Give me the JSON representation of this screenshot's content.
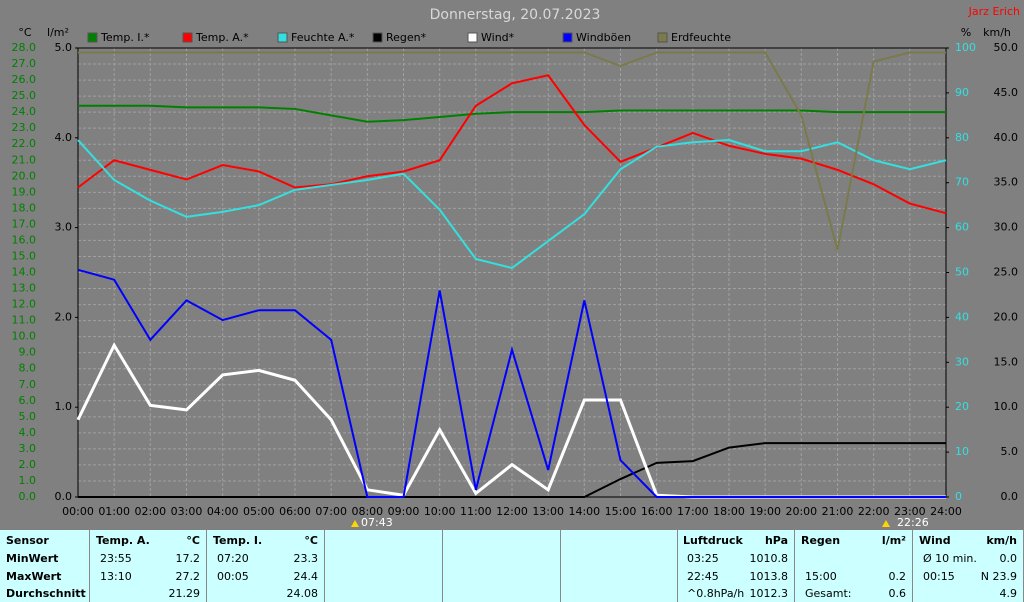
{
  "chart_data": {
    "type": "line",
    "title": "Donnerstag, 20.07.2023",
    "author": "Jarz Erich",
    "y_label": "°C",
    "y2_label": "l/m²",
    "y3_label": "%",
    "y4_label": "km/h",
    "x": [
      0,
      1,
      2,
      3,
      4,
      5,
      6,
      7,
      8,
      9,
      10,
      11,
      12,
      13,
      14,
      15,
      16,
      17,
      18,
      19,
      20,
      21,
      22,
      23,
      24
    ],
    "xlim": [
      0,
      24
    ],
    "xticks": [
      {
        "value": 0,
        "label": "00:00"
      },
      {
        "value": 1,
        "label": "01:00"
      },
      {
        "value": 2,
        "label": "02:00"
      },
      {
        "value": 3,
        "label": "03:00"
      },
      {
        "value": 4,
        "label": "04:00"
      },
      {
        "value": 5,
        "label": "05:00"
      },
      {
        "value": 6,
        "label": "06:00"
      },
      {
        "value": 7,
        "label": "07:00"
      },
      {
        "value": 8,
        "label": "08:00"
      },
      {
        "value": 9,
        "label": "09:00"
      },
      {
        "value": 10,
        "label": "10:00"
      },
      {
        "value": 11,
        "label": "11:00"
      },
      {
        "value": 12,
        "label": "12:00"
      },
      {
        "value": 13,
        "label": "13:00"
      },
      {
        "value": 14,
        "label": "14:00"
      },
      {
        "value": 15,
        "label": "15:00"
      },
      {
        "value": 16,
        "label": "16:00"
      },
      {
        "value": 17,
        "label": "17:00"
      },
      {
        "value": 18,
        "label": "18:00"
      },
      {
        "value": 19,
        "label": "19:00"
      },
      {
        "value": 20,
        "label": "20:00"
      },
      {
        "value": 21,
        "label": "21:00"
      },
      {
        "value": 22,
        "label": "22:00"
      },
      {
        "value": 23,
        "label": "23:00"
      },
      {
        "value": 24,
        "label": "24:00"
      }
    ],
    "ylim": [
      0,
      28
    ],
    "yticks": [
      {
        "value": 0,
        "label": "0.0"
      },
      {
        "value": 1,
        "label": "1.0"
      },
      {
        "value": 2,
        "label": "2.0"
      },
      {
        "value": 3,
        "label": "3.0"
      },
      {
        "value": 4,
        "label": "4.0"
      },
      {
        "value": 5,
        "label": "5.0"
      },
      {
        "value": 6,
        "label": "6.0"
      },
      {
        "value": 7,
        "label": "7.0"
      },
      {
        "value": 8,
        "label": "8.0"
      },
      {
        "value": 9,
        "label": "9.0"
      },
      {
        "value": 10,
        "label": "10.0"
      },
      {
        "value": 11,
        "label": "11.0"
      },
      {
        "value": 12,
        "label": "12.0"
      },
      {
        "value": 13,
        "label": "13.0"
      },
      {
        "value": 14,
        "label": "14.0"
      },
      {
        "value": 15,
        "label": "15.0"
      },
      {
        "value": 16,
        "label": "16.0"
      },
      {
        "value": 17,
        "label": "17.0"
      },
      {
        "value": 18,
        "label": "18.0"
      },
      {
        "value": 19,
        "label": "19.0"
      },
      {
        "value": 20,
        "label": "20.0"
      },
      {
        "value": 21,
        "label": "21.0"
      },
      {
        "value": 22,
        "label": "22.0"
      },
      {
        "value": 23,
        "label": "23.0"
      },
      {
        "value": 24,
        "label": "24.0"
      },
      {
        "value": 25,
        "label": "25.0"
      },
      {
        "value": 26,
        "label": "26.0"
      },
      {
        "value": 27,
        "label": "27.0"
      },
      {
        "value": 28,
        "label": "28.0"
      }
    ],
    "y2lim": [
      0,
      5
    ],
    "y2ticks": [
      {
        "value": 0,
        "label": "0.0"
      },
      {
        "value": 1,
        "label": "1.0"
      },
      {
        "value": 2,
        "label": "2.0"
      },
      {
        "value": 3,
        "label": "3.0"
      },
      {
        "value": 4,
        "label": "4.0"
      },
      {
        "value": 5,
        "label": "5.0"
      }
    ],
    "y3lim": [
      0,
      100
    ],
    "y3ticks": [
      0,
      10,
      20,
      30,
      40,
      50,
      60,
      70,
      80,
      90,
      100
    ],
    "y4lim": [
      0,
      50
    ],
    "y4ticks": [
      {
        "value": 0,
        "label": "0.0"
      },
      {
        "value": 5,
        "label": "5.0"
      },
      {
        "value": 10,
        "label": "10.0"
      },
      {
        "value": 15,
        "label": "15.0"
      },
      {
        "value": 20,
        "label": "20.0"
      },
      {
        "value": 25,
        "label": "25.0"
      },
      {
        "value": 30,
        "label": "30.0"
      },
      {
        "value": 35,
        "label": "35.0"
      },
      {
        "value": 40,
        "label": "40.0"
      },
      {
        "value": 45,
        "label": "45.0"
      },
      {
        "value": 50,
        "label": "50.0"
      }
    ],
    "grid": true,
    "sunrise": "07:43",
    "sunset": "22:26",
    "series": [
      {
        "name": "Temp. I.*",
        "color": "#008000",
        "axis": "y",
        "values": [
          24.4,
          24.4,
          24.4,
          24.3,
          24.3,
          24.3,
          24.2,
          23.8,
          23.4,
          23.5,
          23.7,
          23.9,
          24.0,
          24.0,
          24.0,
          24.1,
          24.1,
          24.1,
          24.1,
          24.1,
          24.1,
          24.0,
          24.0,
          24.0,
          24.0
        ]
      },
      {
        "name": "Temp. A.*",
        "color": "#ff0000",
        "axis": "y",
        "values": [
          19.3,
          21.0,
          20.4,
          19.8,
          20.7,
          20.3,
          19.3,
          19.5,
          20.0,
          20.3,
          21.0,
          24.4,
          25.8,
          26.3,
          23.2,
          20.9,
          21.8,
          22.7,
          21.9,
          21.4,
          21.1,
          20.4,
          19.5,
          18.3,
          17.7
        ]
      },
      {
        "name": "Feuchte A.*",
        "color": "#33e0e0",
        "axis": "y3",
        "values": [
          79.5,
          70.6,
          66,
          62.4,
          63.5,
          65,
          68.4,
          69.5,
          70.6,
          72,
          64,
          53,
          51,
          57,
          63,
          73,
          78,
          79,
          79.5,
          77,
          77,
          79,
          75,
          73,
          75
        ]
      },
      {
        "name": "Regen*",
        "color": "#000000",
        "axis": "y2",
        "values": [
          0,
          0,
          0,
          0,
          0,
          0,
          0,
          0,
          0,
          0,
          0,
          0,
          0,
          0,
          0,
          0.2,
          0.38,
          0.4,
          0.55,
          0.6,
          0.6,
          0.6,
          0.6,
          0.6,
          0.6
        ]
      },
      {
        "name": "Wind*",
        "color": "#ffffff",
        "axis": "y4",
        "values": [
          8.6,
          16.9,
          10.2,
          9.7,
          13.6,
          14.1,
          13,
          8.6,
          0.8,
          0.2,
          7.5,
          0.4,
          3.6,
          0.8,
          10.8,
          10.8,
          0.2,
          0,
          0,
          0,
          0,
          0,
          0,
          0,
          0
        ]
      },
      {
        "name": "Windböen",
        "color": "#0000ff",
        "axis": "y4",
        "values": [
          25.3,
          24.2,
          17.5,
          21.9,
          19.7,
          20.8,
          20.8,
          17.5,
          0,
          0,
          23,
          0.8,
          16.4,
          3,
          21.9,
          4.1,
          0,
          0,
          0,
          0,
          0,
          0,
          0,
          0,
          0
        ]
      },
      {
        "name": "Erdfeuchte",
        "color": "#7a7a4a",
        "axis": "y3",
        "values": [
          99,
          99,
          99,
          99,
          99,
          99,
          99,
          99,
          99,
          99,
          99,
          99,
          99,
          99,
          99,
          96,
          99,
          99,
          99,
          99,
          85,
          55,
          97,
          99,
          99
        ]
      }
    ]
  },
  "stats": {
    "row_labels": [
      "Sensor",
      "MinWert",
      "MaxWert",
      "Durchschnitt"
    ],
    "columns": [
      {
        "name": "Temp. A.",
        "unit": "°C",
        "min": {
          "time": "23:55",
          "value": "17.2"
        },
        "max": {
          "time": "13:10",
          "value": "27.2"
        },
        "avg": {
          "value": "21.29"
        }
      },
      {
        "name": "Temp. I.",
        "unit": "°C",
        "min": {
          "time": "07:20",
          "value": "23.3"
        },
        "max": {
          "time": "00:05",
          "value": "24.4"
        },
        "avg": {
          "value": "24.08"
        }
      },
      {
        "name": "Luftdruck",
        "unit": "hPa",
        "min": {
          "time": "03:25",
          "value": "1010.8"
        },
        "max": {
          "time": "22:45",
          "value": "1013.8"
        },
        "avg": {
          "time": "^0.8hPa/h",
          "value": "1012.3"
        }
      },
      {
        "name": "Regen",
        "unit": "l/m²",
        "max": {
          "time": "15:00",
          "value": "0.2"
        },
        "avg": {
          "time": "Gesamt:",
          "value": "0.6"
        }
      },
      {
        "name": "Wind",
        "unit": "km/h",
        "min": {
          "time": "Ø 10 min.",
          "value": "0.0"
        },
        "max": {
          "time": "00:15",
          "value": "N 23.9"
        },
        "avg": {
          "value": "4.9"
        }
      }
    ]
  }
}
